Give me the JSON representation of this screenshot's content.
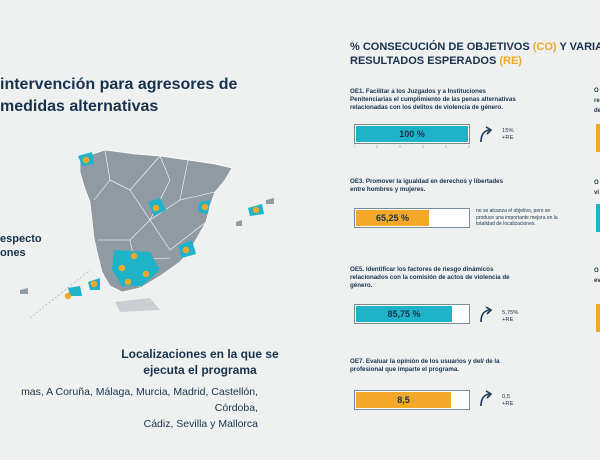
{
  "left": {
    "title_lines": [
      "intervención para agresores de",
      "medidas alternativas"
    ],
    "side_text_lines": [
      "especto",
      "ones"
    ],
    "locations_title_lines": [
      "Localizaciones en la que se",
      "ejecuta el programa"
    ],
    "locations_lines": [
      "mas, A Coruña, Málaga, Murcia, Madrid, Castellón, Córdoba,",
      "Cádiz, Sevilla y Mallorca"
    ]
  },
  "right": {
    "title_line1_prefix": "% CONSECUCIÓN DE OBJETIVOS ",
    "title_line1_co": "(CO)",
    "title_line1_suffix": " Y VARIACIÓ",
    "title_line2_prefix": "RESULTADOS ESPERADOS ",
    "title_line2_re": "(RE)",
    "items": [
      {
        "desc_lines": [
          "OE1. Facilitar a los Juzgados y a Instituciones",
          "Penitenciarias el cumplimiento de las penas alternativas",
          "relacionadas con los delitos de violencia de género."
        ],
        "value_label": "100 %",
        "fill": 1.0,
        "color": "#1fb3c9",
        "delta_lines": [
          "15%",
          "+RE"
        ],
        "arrow": "up"
      },
      {
        "desc_lines": [
          "OE3. Promover la igualdad en derechos y libertades",
          "entre hombres y mujeres."
        ],
        "value_label": "65,25 %",
        "fill": 0.6525,
        "color": "#f4a82a",
        "note_lines": [
          "no se alcanza el objetivo, pero se",
          "produce una importante mejora en la",
          "totalidad de localizaciones."
        ]
      },
      {
        "desc_lines": [
          "OE5.  Identificar los factores de riesgo dinámicos",
          "relacionados con la comisión de actos de violencia de",
          "género."
        ],
        "value_label": "85,75 %",
        "fill": 0.8575,
        "color": "#1fb3c9",
        "delta_lines": [
          "5,75%",
          "+RE"
        ],
        "arrow": "up"
      },
      {
        "desc_lines": [
          "OE7.  Evaluar la opinión de los usuarios y del/ de la",
          "profesional que imparte el programa."
        ],
        "value_label": "8,5",
        "fill": 0.85,
        "color": "#f4a82a",
        "delta_lines": [
          "0,5",
          "+RE"
        ],
        "arrow": "up"
      }
    ],
    "edge_labels": [
      "O",
      "re",
      "de",
      "O",
      "vi",
      "O",
      "ev"
    ]
  },
  "colors": {
    "teal": "#1fb3c9",
    "orange": "#f4a82a",
    "map_gray": "#8f9aa3",
    "navy": "#17324d"
  }
}
